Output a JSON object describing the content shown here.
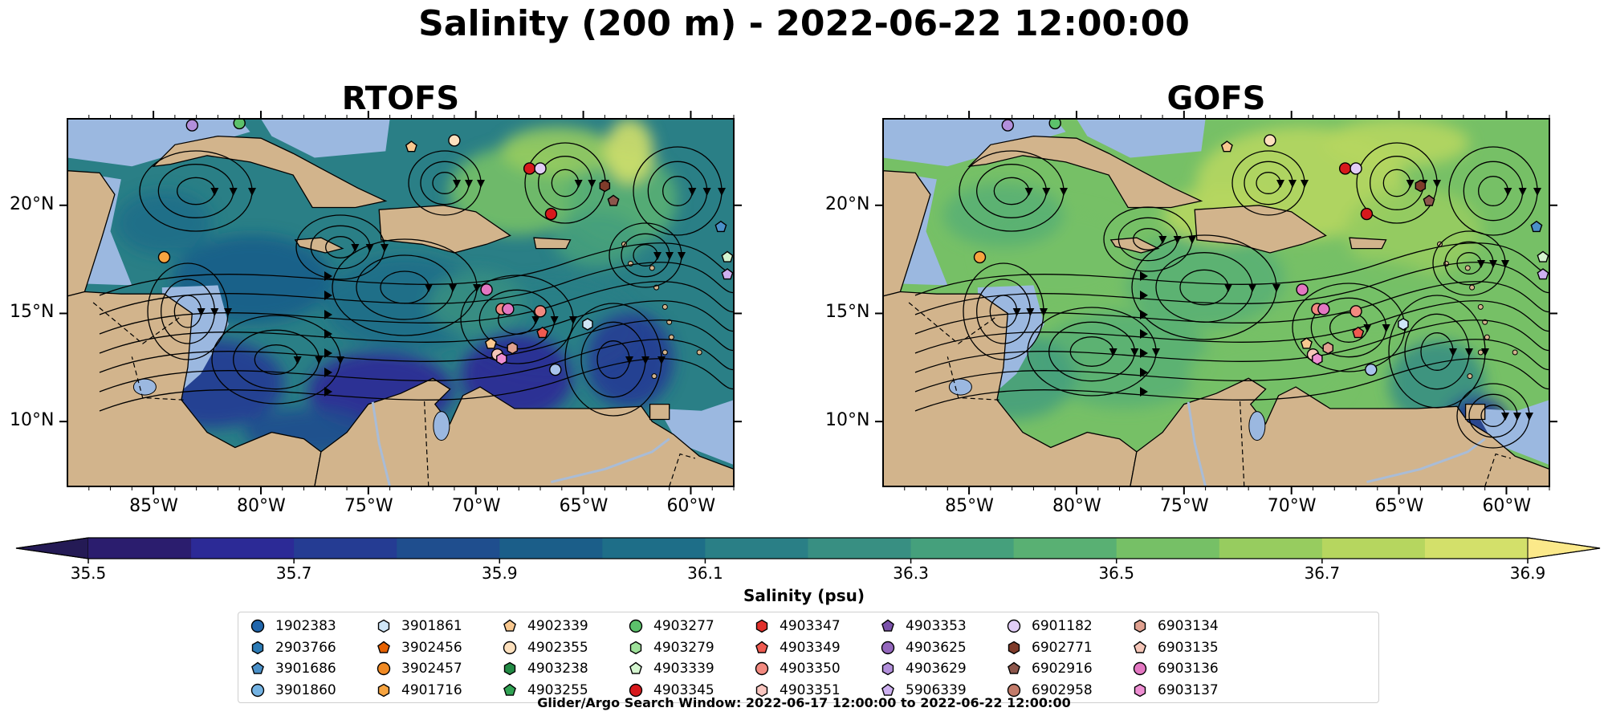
{
  "title": "Salinity (200 m) - 2022-06-22 12:00:00",
  "panels": [
    {
      "title": "RTOFS",
      "theme": "rtofs"
    },
    {
      "title": "GOFS",
      "theme": "gofs"
    }
  ],
  "map_extent": {
    "lon_min": -89,
    "lon_max": -58,
    "lat_min": 7,
    "lat_max": 24
  },
  "lat_ticks": [
    {
      "value": 20,
      "label": "20°N"
    },
    {
      "value": 15,
      "label": "15°N"
    },
    {
      "value": 10,
      "label": "10°N"
    }
  ],
  "lon_ticks": [
    {
      "value": -85,
      "label": "85°W"
    },
    {
      "value": -80,
      "label": "80°W"
    },
    {
      "value": -75,
      "label": "75°W"
    },
    {
      "value": -70,
      "label": "70°W"
    },
    {
      "value": -65,
      "label": "65°W"
    },
    {
      "value": -60,
      "label": "60°W"
    }
  ],
  "colors": {
    "land": "#d2b48c",
    "shelf": "#9bb8e0",
    "deep": "#2a1f6e"
  },
  "colorbar": {
    "label": "Salinity (psu)",
    "min": 35.5,
    "max": 36.9,
    "ticks": [
      "35.5",
      "35.7",
      "35.9",
      "36.1",
      "36.3",
      "36.5",
      "36.7",
      "36.9"
    ],
    "colors": [
      "#2b1d6e",
      "#2c2a96",
      "#253c93",
      "#1f4e8e",
      "#1b5e89",
      "#1e6e88",
      "#2a7f86",
      "#388f82",
      "#45a07c",
      "#59b073",
      "#76c066",
      "#97cc5f",
      "#b6d65f",
      "#d3e06a"
    ],
    "under": "#241a55",
    "over": "#fbe98a"
  },
  "legend": [
    {
      "name": "1902383",
      "marker": "circle",
      "color": "#2166ac"
    },
    {
      "name": "2903766",
      "marker": "hexagon",
      "color": "#2c7bb6"
    },
    {
      "name": "3901686",
      "marker": "pentagon",
      "color": "#4a90c8"
    },
    {
      "name": "3901860",
      "marker": "circle",
      "color": "#74b3e3"
    },
    {
      "name": "3901861",
      "marker": "hexagon",
      "color": "#cfe6f7"
    },
    {
      "name": "3902456",
      "marker": "pentagon",
      "color": "#e66101"
    },
    {
      "name": "3902457",
      "marker": "circle",
      "color": "#f08a24"
    },
    {
      "name": "4901716",
      "marker": "hexagon",
      "color": "#f7a440"
    },
    {
      "name": "4902339",
      "marker": "pentagon",
      "color": "#f9c88f"
    },
    {
      "name": "4902355",
      "marker": "circle",
      "color": "#fde0bd"
    },
    {
      "name": "4903238",
      "marker": "hexagon",
      "color": "#238b45"
    },
    {
      "name": "4903255",
      "marker": "pentagon",
      "color": "#31a354"
    },
    {
      "name": "4903277",
      "marker": "circle",
      "color": "#5cc16b"
    },
    {
      "name": "4903279",
      "marker": "hexagon",
      "color": "#9ee19a"
    },
    {
      "name": "4903339",
      "marker": "pentagon",
      "color": "#d4f5cf"
    },
    {
      "name": "4903345",
      "marker": "circle",
      "color": "#d7191c"
    },
    {
      "name": "4903347",
      "marker": "hexagon",
      "color": "#e0302b"
    },
    {
      "name": "4903349",
      "marker": "pentagon",
      "color": "#ef5a50"
    },
    {
      "name": "4903350",
      "marker": "circle",
      "color": "#f28a80"
    },
    {
      "name": "4903351",
      "marker": "hexagon",
      "color": "#f9c6c0"
    },
    {
      "name": "4903353",
      "marker": "pentagon",
      "color": "#7b52ab"
    },
    {
      "name": "4903625",
      "marker": "circle",
      "color": "#9467bd"
    },
    {
      "name": "4903629",
      "marker": "hexagon",
      "color": "#b28fdb"
    },
    {
      "name": "5906339",
      "marker": "pentagon",
      "color": "#cdb0f0"
    },
    {
      "name": "6901182",
      "marker": "circle",
      "color": "#e2cdf7"
    },
    {
      "name": "6902771",
      "marker": "hexagon",
      "color": "#7f3b2a"
    },
    {
      "name": "6902916",
      "marker": "pentagon",
      "color": "#8c564b"
    },
    {
      "name": "6902958",
      "marker": "circle",
      "color": "#c27b6a"
    },
    {
      "name": "6903134",
      "marker": "hexagon",
      "color": "#e0a190"
    },
    {
      "name": "6903135",
      "marker": "pentagon",
      "color": "#f5c6b8"
    },
    {
      "name": "6903136",
      "marker": "circle",
      "color": "#e377c2"
    },
    {
      "name": "6903137",
      "marker": "hexagon",
      "color": "#ee8fd3"
    }
  ],
  "floats": [
    {
      "lon": -83.2,
      "lat": 23.7,
      "marker": "circle",
      "color": "#b28fdb"
    },
    {
      "lon": -81.0,
      "lat": 23.8,
      "marker": "circle",
      "color": "#5cc16b"
    },
    {
      "lon": -73.0,
      "lat": 22.7,
      "marker": "pentagon",
      "color": "#f9c88f"
    },
    {
      "lon": -71.0,
      "lat": 23.0,
      "marker": "circle",
      "color": "#fde0bd"
    },
    {
      "lon": -67.5,
      "lat": 21.7,
      "marker": "circle",
      "color": "#d7191c"
    },
    {
      "lon": -67.0,
      "lat": 21.7,
      "marker": "circle",
      "color": "#e2cdf7"
    },
    {
      "lon": -64.0,
      "lat": 20.9,
      "marker": "hexagon",
      "color": "#7f3b2a"
    },
    {
      "lon": -63.6,
      "lat": 20.2,
      "marker": "pentagon",
      "color": "#8c564b"
    },
    {
      "lon": -66.5,
      "lat": 19.6,
      "marker": "circle",
      "color": "#d7191c"
    },
    {
      "lon": -58.6,
      "lat": 19.0,
      "marker": "pentagon",
      "color": "#4a90c8"
    },
    {
      "lon": -58.3,
      "lat": 17.6,
      "marker": "pentagon",
      "color": "#d4f5cf"
    },
    {
      "lon": -58.3,
      "lat": 16.8,
      "marker": "pentagon",
      "color": "#cdb0f0"
    },
    {
      "lon": -84.5,
      "lat": 17.6,
      "marker": "circle",
      "color": "#f7a440"
    },
    {
      "lon": -69.5,
      "lat": 16.1,
      "marker": "circle",
      "color": "#e377c2"
    },
    {
      "lon": -68.8,
      "lat": 15.2,
      "marker": "circle",
      "color": "#f28a80"
    },
    {
      "lon": -68.5,
      "lat": 15.2,
      "marker": "circle",
      "color": "#e377c2"
    },
    {
      "lon": -67.0,
      "lat": 15.1,
      "marker": "circle",
      "color": "#f28a80"
    },
    {
      "lon": -66.9,
      "lat": 14.1,
      "marker": "pentagon",
      "color": "#ef5a50"
    },
    {
      "lon": -64.8,
      "lat": 14.5,
      "marker": "hexagon",
      "color": "#cfe6f7"
    },
    {
      "lon": -69.3,
      "lat": 13.6,
      "marker": "pentagon",
      "color": "#f9c88f"
    },
    {
      "lon": -68.3,
      "lat": 13.4,
      "marker": "hexagon",
      "color": "#e0a190"
    },
    {
      "lon": -69.0,
      "lat": 13.1,
      "marker": "circle",
      "color": "#f5c6b8"
    },
    {
      "lon": -68.8,
      "lat": 12.9,
      "marker": "hexagon",
      "color": "#ee8fd3"
    },
    {
      "lon": -66.3,
      "lat": 12.4,
      "marker": "circle",
      "color": "#a9c4ec"
    }
  ],
  "footer": "Glider/Argo Search Window: 2022-06-17 12:00:00 to 2022-06-22 12:00:00"
}
